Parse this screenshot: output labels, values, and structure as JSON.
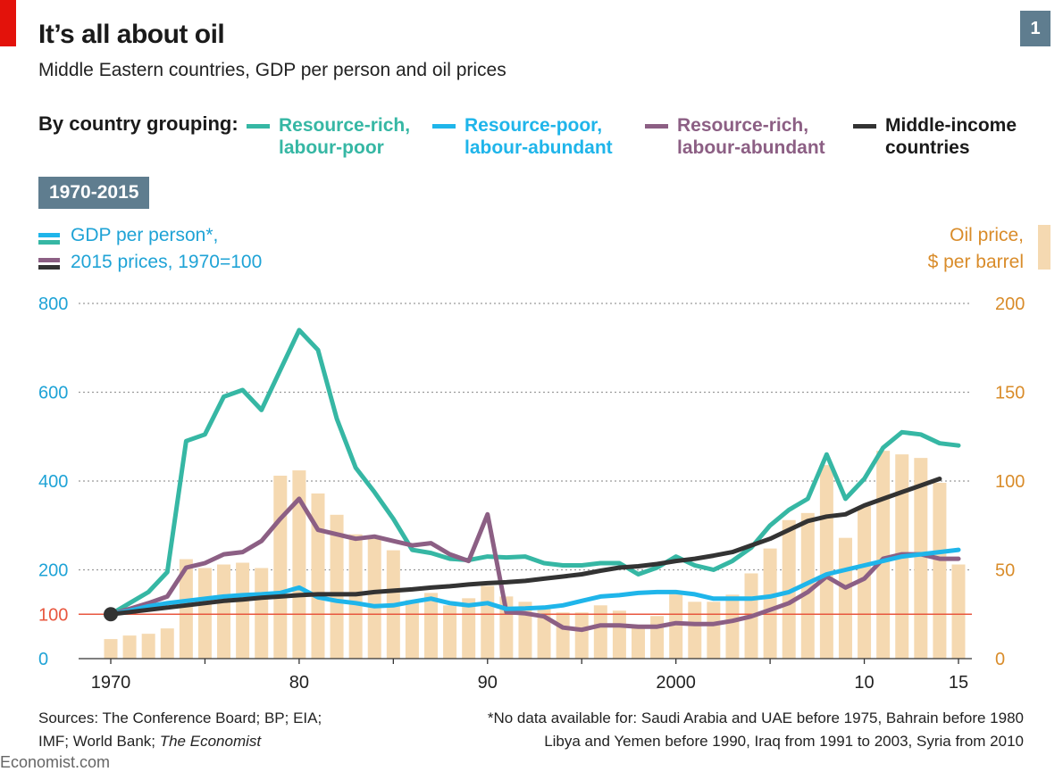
{
  "header": {
    "title": "It’s all about oil",
    "subtitle": "Middle Eastern countries, GDP per person and oil prices",
    "chart_number": "1"
  },
  "legend": {
    "heading": "By country grouping:",
    "items": [
      {
        "label": "Resource-rich,\nlabour-poor",
        "color": "#36b7a4"
      },
      {
        "label": "Resource-poor,\nlabour-abundant",
        "color": "#1fb5ea"
      },
      {
        "label": "Resource-rich,\nlabour-abundant",
        "color": "#8c5f84"
      },
      {
        "label": "Middle-income\ncountries",
        "color": "#333333"
      }
    ]
  },
  "period_badge": "1970-2015",
  "left_axis_key": {
    "line1": "GDP per person*,",
    "line2": "2015 prices, 1970=100"
  },
  "right_axis_key": {
    "line1": "Oil price,",
    "line2": "$ per barrel"
  },
  "sources": {
    "label": "Sources: The Conference Board; BP; EIA;",
    "line2_prefix": "IMF; World Bank; ",
    "line2_italic": "The Economist"
  },
  "footnote": {
    "line1": "*No data available for: Saudi Arabia and UAE before 1975, Bahrain before 1980",
    "line2": "Libya and Yemen before 1990, Iraq from 1991 to 2003, Syria from 2010"
  },
  "brand": "Economist.com",
  "chart_data": {
    "type": "bar+line",
    "x_ticks": [
      1970,
      1980,
      1990,
      2000,
      2010,
      2015
    ],
    "x_tick_labels": [
      "1970",
      "80",
      "90",
      "2000",
      "10",
      "15"
    ],
    "xlim": [
      1969,
      2016
    ],
    "left_axis": {
      "ylim": [
        0,
        800
      ],
      "ticks": [
        0,
        100,
        200,
        400,
        600,
        800
      ],
      "tick_labels": [
        "0",
        "100",
        "200",
        "400",
        "600",
        "800"
      ],
      "color": "#1fa3d6"
    },
    "right_axis": {
      "ylim": [
        0,
        200
      ],
      "ticks": [
        0,
        50,
        100,
        150,
        200
      ],
      "tick_labels": [
        "0",
        "50",
        "100",
        "150",
        "200"
      ],
      "color": "#d98c2a"
    },
    "reference_line": {
      "value": 100,
      "color": "#e8573f"
    },
    "grid": true,
    "bars": {
      "axis": "right",
      "color": "#f5d9b1",
      "years": [
        1970,
        1971,
        1972,
        1973,
        1974,
        1975,
        1976,
        1977,
        1978,
        1979,
        1980,
        1981,
        1982,
        1983,
        1984,
        1985,
        1986,
        1987,
        1988,
        1989,
        1990,
        1991,
        1992,
        1993,
        1994,
        1995,
        1996,
        1997,
        1998,
        1999,
        2000,
        2001,
        2002,
        2003,
        2004,
        2005,
        2006,
        2007,
        2008,
        2009,
        2010,
        2011,
        2012,
        2013,
        2014,
        2015
      ],
      "values": [
        11,
        13,
        14,
        17,
        56,
        51,
        53,
        54,
        51,
        103,
        106,
        93,
        81,
        70,
        68,
        61,
        33,
        37,
        30,
        34,
        41,
        35,
        32,
        28,
        26,
        26,
        30,
        27,
        18,
        24,
        38,
        32,
        32,
        36,
        48,
        62,
        78,
        82,
        109,
        68,
        86,
        117,
        115,
        113,
        99,
        53
      ]
    },
    "series": [
      {
        "name": "Resource-rich, labour-poor",
        "axis": "left",
        "color": "#36b7a4",
        "x": [
          1970,
          1971,
          1972,
          1973,
          1974,
          1975,
          1976,
          1977,
          1978,
          1979,
          1980,
          1981,
          1982,
          1983,
          1984,
          1985,
          1986,
          1987,
          1988,
          1989,
          1990,
          1991,
          1992,
          1993,
          1994,
          1995,
          1996,
          1997,
          1998,
          1999,
          2000,
          2001,
          2002,
          2003,
          2004,
          2005,
          2006,
          2007,
          2008,
          2009,
          2010,
          2011,
          2012,
          2013,
          2014,
          2015
        ],
        "y": [
          100,
          125,
          150,
          195,
          490,
          505,
          590,
          605,
          560,
          650,
          740,
          695,
          540,
          430,
          375,
          315,
          245,
          238,
          225,
          222,
          230,
          228,
          230,
          215,
          210,
          210,
          215,
          215,
          190,
          205,
          230,
          210,
          200,
          220,
          250,
          300,
          335,
          360,
          460,
          360,
          405,
          475,
          510,
          505,
          485,
          480
        ]
      },
      {
        "name": "Resource-poor, labour-abundant",
        "axis": "left",
        "color": "#1fb5ea",
        "x": [
          1970,
          1971,
          1972,
          1973,
          1974,
          1975,
          1976,
          1977,
          1978,
          1979,
          1980,
          1981,
          1982,
          1983,
          1984,
          1985,
          1986,
          1987,
          1988,
          1989,
          1990,
          1991,
          1992,
          1993,
          1994,
          1995,
          1996,
          1997,
          1998,
          1999,
          2000,
          2001,
          2002,
          2003,
          2004,
          2005,
          2006,
          2007,
          2008,
          2009,
          2010,
          2011,
          2012,
          2013,
          2014,
          2015
        ],
        "y": [
          100,
          108,
          118,
          125,
          130,
          135,
          140,
          143,
          145,
          148,
          160,
          138,
          130,
          125,
          118,
          120,
          128,
          135,
          125,
          120,
          125,
          112,
          113,
          115,
          120,
          130,
          140,
          143,
          148,
          150,
          150,
          145,
          135,
          135,
          135,
          140,
          150,
          170,
          190,
          200,
          210,
          220,
          230,
          235,
          240,
          245
        ]
      },
      {
        "name": "Resource-rich, labour-abundant",
        "axis": "left",
        "color": "#8c5f84",
        "x": [
          1970,
          1971,
          1972,
          1973,
          1974,
          1975,
          1976,
          1977,
          1978,
          1979,
          1980,
          1981,
          1982,
          1983,
          1984,
          1985,
          1986,
          1987,
          1988,
          1989,
          1990,
          1991,
          1992,
          1993,
          1994,
          1995,
          1996,
          1997,
          1998,
          1999,
          2000,
          2001,
          2002,
          2003,
          2004,
          2005,
          2006,
          2007,
          2008,
          2009,
          2010,
          2011,
          2012,
          2013,
          2014,
          2015
        ],
        "y": [
          100,
          112,
          125,
          140,
          205,
          215,
          235,
          240,
          265,
          315,
          360,
          290,
          280,
          270,
          275,
          265,
          255,
          260,
          235,
          220,
          325,
          105,
          102,
          95,
          70,
          65,
          75,
          75,
          72,
          72,
          80,
          78,
          78,
          85,
          95,
          110,
          125,
          150,
          185,
          160,
          180,
          225,
          235,
          235,
          225,
          225
        ]
      },
      {
        "name": "Middle-income countries",
        "axis": "left",
        "color": "#333333",
        "x": [
          1970,
          1971,
          1972,
          1973,
          1974,
          1975,
          1976,
          1977,
          1978,
          1979,
          1980,
          1981,
          1982,
          1983,
          1984,
          1985,
          1986,
          1987,
          1988,
          1989,
          1990,
          1991,
          1992,
          1993,
          1994,
          1995,
          1996,
          1997,
          1998,
          1999,
          2000,
          2001,
          2002,
          2003,
          2004,
          2005,
          2006,
          2007,
          2008,
          2009,
          2010,
          2011,
          2012,
          2013,
          2014
        ],
        "y": [
          100,
          105,
          110,
          115,
          120,
          125,
          130,
          133,
          137,
          140,
          143,
          145,
          145,
          145,
          150,
          153,
          156,
          160,
          163,
          167,
          170,
          172,
          175,
          180,
          185,
          190,
          198,
          205,
          208,
          213,
          220,
          225,
          232,
          240,
          255,
          270,
          290,
          310,
          320,
          325,
          345,
          360,
          375,
          390,
          405
        ]
      }
    ]
  }
}
